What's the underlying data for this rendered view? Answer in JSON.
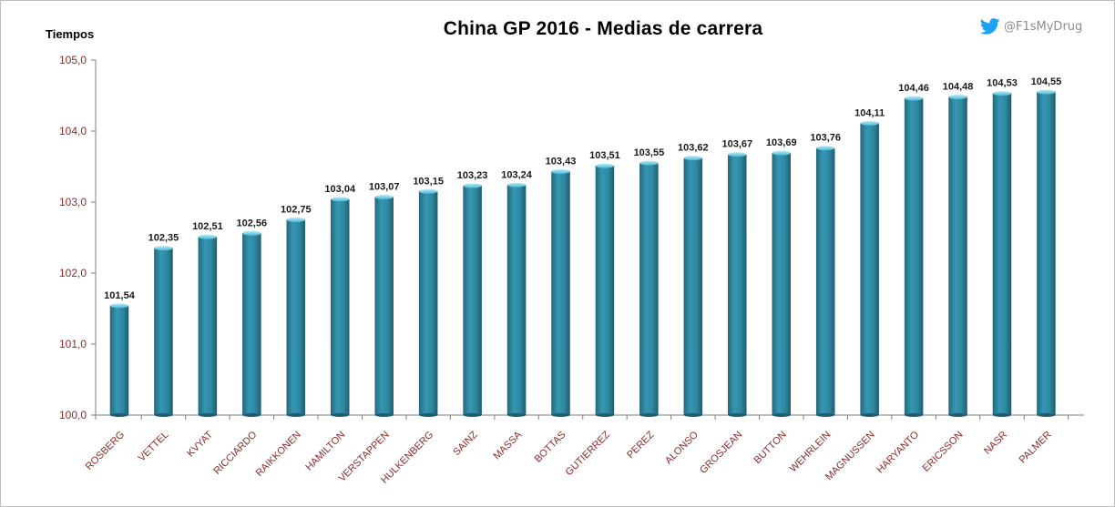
{
  "chart_data": {
    "type": "bar",
    "title": "China GP 2016 - Medias de carrera",
    "ylabel": "Tiempos",
    "xlabel": "",
    "ylim": [
      100.0,
      105.0
    ],
    "yticks": [
      "100,0",
      "101,0",
      "102,0",
      "103,0",
      "104,0",
      "105,0"
    ],
    "grid": false,
    "legend": "none",
    "categories": [
      "ROSBERG",
      "VETTEL",
      "KVYAT",
      "RICCIARDO",
      "RAIKKONEN",
      "HAMILTON",
      "VERSTAPPEN",
      "HULKENBERG",
      "SAINZ",
      "MASSA",
      "BOTTAS",
      "GUTIERREZ",
      "PEREZ",
      "ALONSO",
      "GROSJEAN",
      "BUTTON",
      "WEHRLEIN",
      "MAGNUSSEN",
      "HARYANTO",
      "ERICSSON",
      "NASR",
      "PALMER"
    ],
    "values": [
      101.54,
      102.35,
      102.51,
      102.56,
      102.75,
      103.04,
      103.07,
      103.15,
      103.23,
      103.24,
      103.43,
      103.51,
      103.55,
      103.62,
      103.67,
      103.69,
      103.76,
      104.11,
      104.46,
      104.48,
      104.53,
      104.55
    ],
    "data_labels": [
      "101,54",
      "102,35",
      "102,51",
      "102,56",
      "102,75",
      "103,04",
      "103,07",
      "103,15",
      "103,23",
      "103,24",
      "103,43",
      "103,51",
      "103,55",
      "103,62",
      "103,67",
      "103,69",
      "103,76",
      "104,11",
      "104,46",
      "104,48",
      "104,53",
      "104,55"
    ],
    "bar_color": "#2f87a0",
    "bar_top_color": "#6fd0ea"
  },
  "watermark": {
    "handle": "@F1sMyDrug",
    "icon": "twitter-bird-icon",
    "color": "#1da1f2"
  }
}
